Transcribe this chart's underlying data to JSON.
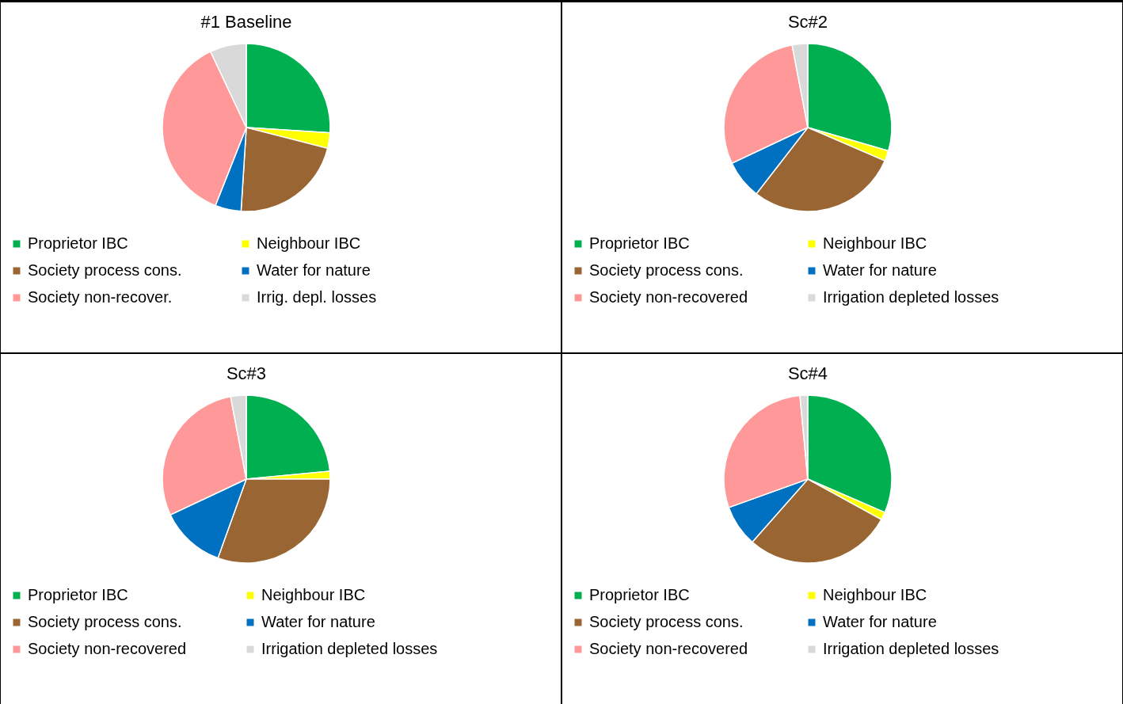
{
  "chart_data": [
    {
      "type": "pie",
      "title": "#1 Baseline",
      "categories": [
        "Proprietor IBC",
        "Neighbour IBC",
        "Society process cons.",
        "Water for nature",
        "Society non-recover.",
        "Irrig. depl. losses"
      ],
      "values": [
        26,
        3,
        22,
        5,
        37,
        7
      ],
      "colors": [
        "#00b050",
        "#ffff00",
        "#996633",
        "#0070c0",
        "#ff9999",
        "#d9d9d9"
      ],
      "legend": "bottom"
    },
    {
      "type": "pie",
      "title": "Sc#2",
      "categories": [
        "Proprietor IBC",
        "Neighbour IBC",
        "Society process cons.",
        "Water for nature",
        "Society non-recovered",
        "Irrigation depleted losses"
      ],
      "values": [
        29.5,
        2,
        29,
        7.5,
        29,
        3
      ],
      "colors": [
        "#00b050",
        "#ffff00",
        "#996633",
        "#0070c0",
        "#ff9999",
        "#d9d9d9"
      ],
      "legend": "bottom"
    },
    {
      "type": "pie",
      "title": "Sc#3",
      "categories": [
        "Proprietor IBC",
        "Neighbour IBC",
        "Society process cons.",
        "Water for nature",
        "Society non-recovered",
        "Irrigation depleted losses"
      ],
      "values": [
        23.5,
        1.5,
        30.5,
        12.5,
        29,
        3
      ],
      "colors": [
        "#00b050",
        "#ffff00",
        "#996633",
        "#0070c0",
        "#ff9999",
        "#d9d9d9"
      ],
      "legend": "bottom"
    },
    {
      "type": "pie",
      "title": "Sc#4",
      "categories": [
        "Proprietor IBC",
        "Neighbour IBC",
        "Society process cons.",
        "Water for nature",
        "Society non-recovered",
        "Irrigation depleted losses"
      ],
      "values": [
        31.5,
        1.5,
        28.5,
        8,
        29,
        1.5
      ],
      "colors": [
        "#00b050",
        "#ffff00",
        "#996633",
        "#0070c0",
        "#ff9999",
        "#d9d9d9"
      ],
      "legend": "bottom"
    }
  ]
}
